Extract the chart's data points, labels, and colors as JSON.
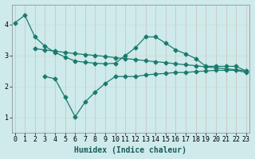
{
  "xlabel": "Humidex (Indice chaleur)",
  "bg_color": "#ceeaea",
  "grid_color": "#b8d8d8",
  "line_color": "#1a7a6e",
  "series1_x": [
    0,
    1,
    2,
    3,
    4,
    5,
    6,
    7,
    8,
    9,
    10,
    11,
    12,
    13,
    14,
    15,
    16,
    17,
    18,
    19,
    20,
    21,
    22,
    23
  ],
  "series1_y": [
    4.05,
    4.3,
    3.6,
    3.3,
    3.1,
    2.95,
    2.82,
    2.78,
    2.75,
    2.73,
    2.75,
    3.0,
    3.25,
    3.6,
    3.6,
    3.4,
    3.18,
    3.05,
    2.9,
    2.65,
    2.65,
    2.65,
    2.65,
    2.5
  ],
  "series2_x": [
    2,
    3,
    4,
    5,
    6,
    7,
    8,
    9,
    10,
    11,
    12,
    13,
    14,
    15,
    16,
    17,
    18,
    19,
    20,
    21,
    22,
    23
  ],
  "series2_y": [
    3.22,
    3.18,
    3.14,
    3.1,
    3.06,
    3.03,
    3.0,
    2.97,
    2.93,
    2.9,
    2.87,
    2.83,
    2.8,
    2.77,
    2.73,
    2.7,
    2.67,
    2.63,
    2.6,
    2.57,
    2.54,
    2.5
  ],
  "series3_x": [
    3,
    4,
    5,
    6,
    7,
    8,
    9,
    10,
    11,
    12,
    13,
    14,
    15,
    16,
    17,
    18,
    19,
    20,
    21,
    22,
    23
  ],
  "series3_y": [
    2.32,
    2.25,
    1.65,
    1.02,
    1.5,
    1.82,
    2.1,
    2.32,
    2.32,
    2.32,
    2.37,
    2.4,
    2.42,
    2.45,
    2.45,
    2.48,
    2.5,
    2.52,
    2.52,
    2.52,
    2.45
  ],
  "xlim": [
    -0.3,
    23.3
  ],
  "ylim": [
    0.5,
    4.65
  ],
  "yticks": [
    1,
    2,
    3,
    4
  ],
  "xticks": [
    0,
    1,
    2,
    3,
    4,
    5,
    6,
    7,
    8,
    9,
    10,
    11,
    12,
    13,
    14,
    15,
    16,
    17,
    18,
    19,
    20,
    21,
    22,
    23
  ],
  "marker": "D",
  "markersize": 2.5,
  "linewidth": 0.9,
  "xlabel_fontsize": 7,
  "tick_fontsize": 6
}
